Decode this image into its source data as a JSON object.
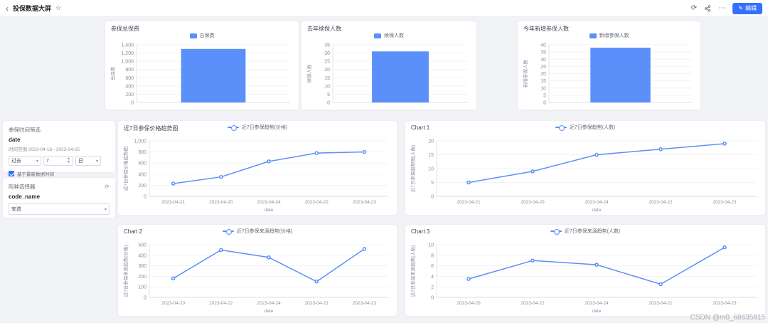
{
  "topbar": {
    "back_icon": "‹",
    "title": "投保数据大屏",
    "favorite_icon": "☆",
    "refresh_icon": "⟳",
    "more_icon": "⋯",
    "edit_icon": "✎",
    "edit_label": "编辑"
  },
  "filter_panel": {
    "time_section_title": "参保时间筛选",
    "time_field_name": "date",
    "time_range_text": "时间范围 2023-04-18 - 2023-04-25",
    "past_select_value": "过去",
    "number_value": "7",
    "unit_select_value": "日",
    "checkbox_label": "基于最新数据时间",
    "selector_section_title": "险种选择器",
    "selector_field_name": "code_name",
    "selector_value": "安选"
  },
  "watermark": "CSDN @m0_68635815",
  "chart_data": [
    {
      "type": "bar",
      "title": "参保总保费",
      "legend": "总保费",
      "ylabel": "总保费",
      "xlabel": "",
      "categories": [
        ""
      ],
      "values": [
        1300
      ],
      "ylim": [
        0,
        1400
      ],
      "yticks": [
        0,
        200,
        400,
        600,
        800,
        1000,
        1200,
        1400
      ],
      "show_x_labels": false,
      "color": "#5b8ff9",
      "legend_position": "top-center",
      "grid": true
    },
    {
      "type": "bar",
      "title": "去年续保人数",
      "legend": "续保人数",
      "ylabel": "续保人数",
      "xlabel": "",
      "categories": [
        ""
      ],
      "values": [
        31
      ],
      "ylim": [
        0,
        35
      ],
      "yticks": [
        0,
        5,
        10,
        15,
        20,
        25,
        30,
        35
      ],
      "show_x_labels": false,
      "color": "#5b8ff9",
      "legend_position": "top-center",
      "grid": true
    },
    {
      "type": "bar",
      "title": "今年新增参保人数",
      "legend": "新增参保人数",
      "ylabel": "新增参保人数",
      "xlabel": "",
      "categories": [
        ""
      ],
      "values": [
        38
      ],
      "ylim": [
        0,
        40
      ],
      "yticks": [
        0,
        5,
        10,
        15,
        20,
        25,
        30,
        35,
        40
      ],
      "show_x_labels": false,
      "color": "#5b8ff9",
      "legend_position": "top-center",
      "grid": true
    },
    {
      "type": "line",
      "title": "近7日参保价格趋势图",
      "legend": "近7日参保趋势(价格)",
      "ylabel": "近7日参保价格趋势图",
      "xlabel": "date",
      "categories": [
        "2023-04-21",
        "2023-04-20",
        "2023-04-24",
        "2023-04-22",
        "2023-04-23"
      ],
      "values": [
        230,
        350,
        630,
        780,
        800
      ],
      "ylim": [
        0,
        1000
      ],
      "yticks": [
        0,
        200,
        400,
        600,
        800,
        1000
      ],
      "show_x_labels": true,
      "color": "#5b8ff9",
      "legend_position": "top-center",
      "grid": true
    },
    {
      "type": "line",
      "title": "Chart 1",
      "legend": "近7日参保趋势(人数)",
      "ylabel": "近7日参保趋势图(人数)",
      "xlabel": "date",
      "categories": [
        "2023-04-21",
        "2023-04-20",
        "2023-04-24",
        "2023-04-22",
        "2023-04-23"
      ],
      "values": [
        5,
        9,
        15,
        17,
        19
      ],
      "ylim": [
        0,
        20
      ],
      "yticks": [
        0,
        5,
        10,
        15,
        20
      ],
      "show_x_labels": true,
      "color": "#5b8ff9",
      "legend_position": "top-center",
      "grid": true
    },
    {
      "type": "line",
      "title": "Chart 2",
      "legend": "近7日参保来源趋势(价格)",
      "ylabel": "近7日参保来源趋势(价格)",
      "xlabel": "date",
      "categories": [
        "2023-04-20",
        "2023-04-22",
        "2023-04-24",
        "2023-04-21",
        "2023-04-23"
      ],
      "values": [
        180,
        450,
        380,
        150,
        460
      ],
      "ylim": [
        0,
        500
      ],
      "yticks": [
        0,
        100,
        200,
        300,
        400,
        500
      ],
      "show_x_labels": true,
      "color": "#5b8ff9",
      "legend_position": "top-center",
      "grid": true
    },
    {
      "type": "line",
      "title": "Chart 3",
      "legend": "近7日参保来源趋势(人数)",
      "ylabel": "近7日参保来源趋势(人数)",
      "xlabel": "date",
      "categories": [
        "2023-04-20",
        "2023-04-22",
        "2023-04-24",
        "2023-04-21",
        "2023-04-23"
      ],
      "values": [
        3.5,
        7,
        6.2,
        2.5,
        9.5
      ],
      "ylim": [
        0,
        10
      ],
      "yticks": [
        0,
        2,
        4,
        6,
        8,
        10
      ],
      "show_x_labels": true,
      "color": "#5b8ff9",
      "legend_position": "top-center",
      "grid": true
    }
  ]
}
